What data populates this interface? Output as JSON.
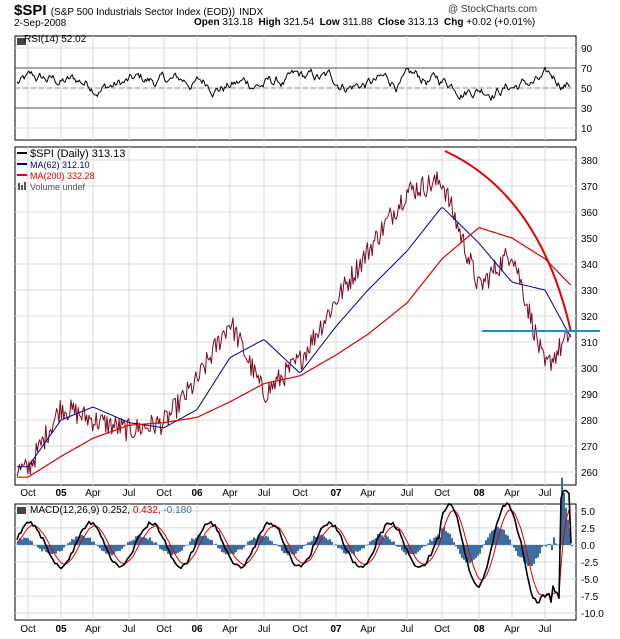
{
  "header": {
    "symbol": "$SPI",
    "name": "(S&P 500 Industrials Sector Index (EOD))",
    "exchange": "INDX",
    "date": "2-Sep-2008",
    "copyright": "@ StockCharts.com",
    "open_label": "Open",
    "open": "313.18",
    "high_label": "High",
    "high": "321.54",
    "low_label": "Low",
    "low": "311.88",
    "close_label": "Close",
    "close": "313.13",
    "chg_label": "Chg",
    "chg": "+0.02 (+0.01%)"
  },
  "rsi_panel": {
    "label": "RSI(14) 52.02",
    "ticks": [
      90,
      70,
      50,
      30,
      10
    ],
    "overbought": 70,
    "oversold": 30,
    "midline": 50
  },
  "price_panel": {
    "legend": [
      {
        "text": "$SPI (Daily) 313.13",
        "color": "#000000",
        "marker": "line"
      },
      {
        "text": "MA(62) 312.10",
        "color": "#00007f",
        "marker": "line"
      },
      {
        "text": "MA(200) 332.28",
        "color": "#dd0000",
        "marker": "line"
      },
      {
        "text": "Volume undef",
        "color": "#555555",
        "marker": "bars"
      }
    ],
    "ticks": [
      380,
      370,
      360,
      350,
      340,
      330,
      320,
      310,
      300,
      290,
      280,
      270,
      260
    ]
  },
  "macd_panel": {
    "label_prefix": "MACD(12,26,9)",
    "macd": "0.252",
    "signal": "0.432",
    "hist": "-0.180",
    "ticks": [
      "5.0",
      "2.5",
      "0.0",
      "-2.5",
      "-5.0",
      "-7.5",
      "-10.0"
    ]
  },
  "x_axis": {
    "labels": [
      "Oct",
      "05",
      "Apr",
      "Jul",
      "Oct",
      "06",
      "Apr",
      "Jul",
      "Oct",
      "07",
      "Apr",
      "Jul",
      "Oct",
      "08",
      "Apr",
      "Jul"
    ]
  },
  "colors": {
    "price": "#7a0a1e",
    "ma62": "#00007f",
    "ma200": "#dd0000",
    "trendline": "#e60000",
    "support": "#1e90c0",
    "macd_hist": "#3b6ea5",
    "grid": "#d8d8d8"
  },
  "chart_data": {
    "type": "line",
    "title": "$SPI (S&P 500 Industrials Sector Index (EOD)) INDX",
    "x": [
      "2004-10",
      "2005-01",
      "2005-04",
      "2005-07",
      "2005-10",
      "2006-01",
      "2006-04",
      "2006-07",
      "2006-10",
      "2007-01",
      "2007-04",
      "2007-07",
      "2007-10",
      "2008-01",
      "2008-04",
      "2008-07",
      "2008-09"
    ],
    "ylim": [
      255,
      385
    ],
    "series": [
      {
        "name": "$SPI (Daily)",
        "values": [
          261,
          285,
          280,
          276,
          279,
          295,
          318,
          290,
          303,
          326,
          345,
          368,
          372,
          331,
          345,
          300,
          313
        ]
      },
      {
        "name": "MA(62)",
        "values": [
          262,
          280,
          285,
          279,
          277,
          284,
          304,
          311,
          298,
          316,
          330,
          345,
          362,
          348,
          333,
          330,
          312
        ]
      },
      {
        "name": "MA(200)",
        "values": [
          258,
          266,
          273,
          278,
          279,
          281,
          287,
          294,
          297,
          305,
          313,
          325,
          342,
          354,
          350,
          342,
          332
        ]
      }
    ],
    "rsi": {
      "name": "RSI(14)",
      "range": [
        0,
        100
      ],
      "last": 52.02
    },
    "macd": {
      "name": "MACD(12,26,9)",
      "range": [
        -11,
        6
      ],
      "macd": 0.252,
      "signal": 0.432,
      "hist": -0.18
    }
  }
}
